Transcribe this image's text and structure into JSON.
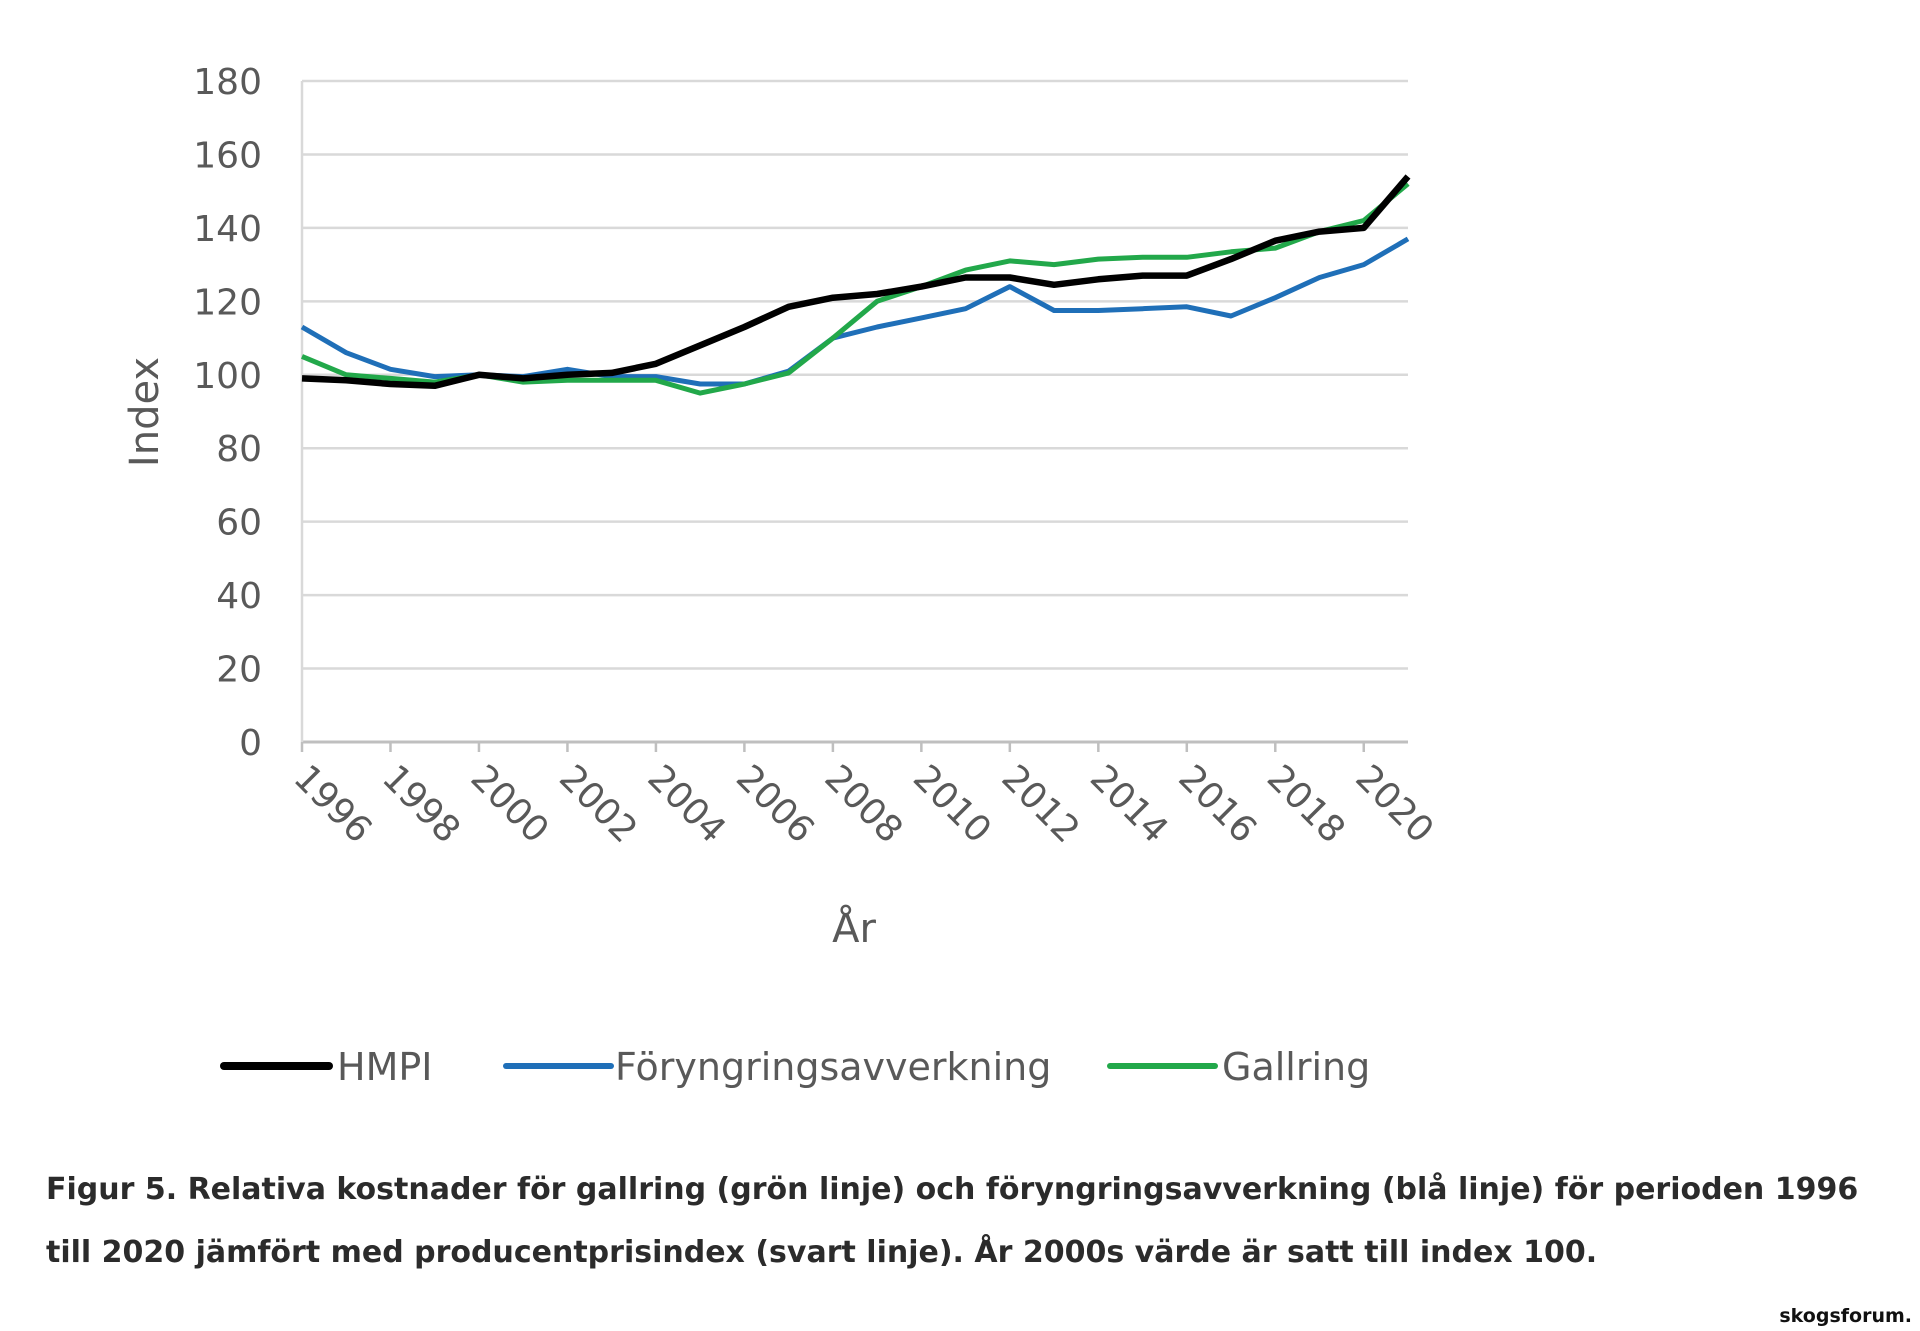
{
  "chart_data": {
    "type": "line",
    "xlabel": "År",
    "ylabel": "Index",
    "ylim": [
      0,
      180
    ],
    "yticks": [
      0,
      20,
      40,
      60,
      80,
      100,
      120,
      140,
      160,
      180
    ],
    "xlim": [
      1996,
      2021
    ],
    "xticks": [
      1996,
      1998,
      2000,
      2002,
      2004,
      2006,
      2008,
      2010,
      2012,
      2014,
      2016,
      2018,
      2020
    ],
    "grid": "horizontal",
    "legend_position": "bottom",
    "x": [
      1996,
      1997,
      1998,
      1999,
      2000,
      2001,
      2002,
      2003,
      2004,
      2005,
      2006,
      2007,
      2008,
      2009,
      2010,
      2011,
      2012,
      2013,
      2014,
      2015,
      2016,
      2017,
      2018,
      2019,
      2020,
      2021
    ],
    "series": [
      {
        "name": "HMPI",
        "color": "#000000",
        "values": [
          99,
          98.5,
          97.5,
          97,
          100,
          99,
          100,
          100.5,
          103,
          108,
          113,
          118.5,
          121,
          122,
          124,
          126.5,
          126.5,
          124.5,
          126,
          127,
          127,
          131.5,
          136.5,
          139,
          140,
          154
        ]
      },
      {
        "name": "Föryngringsavverkning",
        "color": "#1f6fb8",
        "values": [
          113,
          106,
          101.5,
          99.5,
          100,
          99.5,
          101.5,
          99.5,
          99.5,
          97.5,
          97.5,
          101,
          110,
          113,
          115.5,
          118,
          124,
          117.5,
          117.5,
          118,
          118.5,
          116,
          121,
          126.5,
          130,
          137
        ]
      },
      {
        "name": "Gallring",
        "color": "#22a84a",
        "values": [
          105,
          100,
          99,
          98,
          100,
          98,
          98.5,
          98.5,
          98.5,
          95,
          97.5,
          100.5,
          110,
          120,
          124,
          128.5,
          131,
          130,
          131.5,
          132,
          132,
          133.5,
          134.5,
          139,
          142,
          152
        ]
      }
    ]
  },
  "caption": {
    "text": "Figur 5. Relativa kostnader för gallring (grön linje) och föryngringsavverkning (blå linje) för perioden 1996 till 2020 jämfört med producentprisindex (svart linje). År 2000s värde är satt till index 100."
  },
  "watermark": "skogsforum."
}
